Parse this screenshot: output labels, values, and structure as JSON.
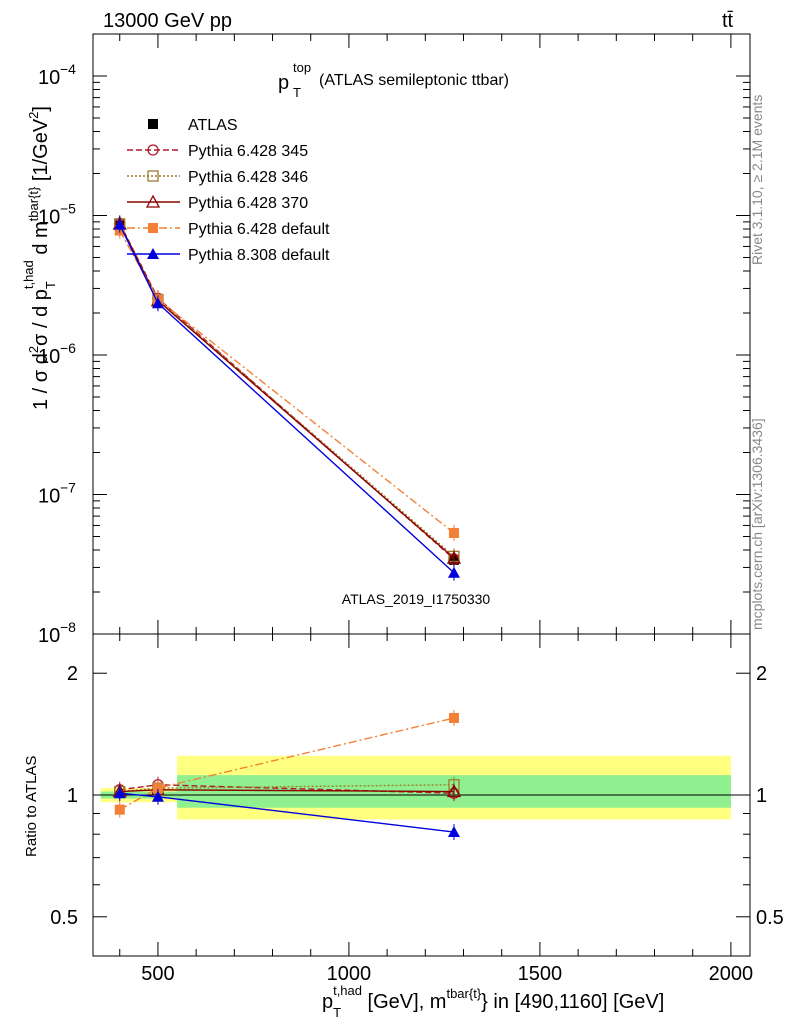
{
  "header": {
    "left": "13000 GeV pp",
    "right": "tt̄"
  },
  "side_labels": {
    "rivet": "Rivet 3.1.10, ≥ 2.1M events",
    "mcplots": "mcplots.cern.ch [arXiv:1306.3436]"
  },
  "chart_data": [
    {
      "type": "line",
      "panel": "main",
      "title": {
        "main": "p",
        "sup": "top",
        "sub": "T",
        "rest": " (ATLAS semileptonic ttbar)"
      },
      "ylabel": "1 / σ d²σ / d p_T^{t,had} d m^{tbar{t}} [1/GeV²]",
      "yscale": "log",
      "ylim": [
        1e-08,
        0.0002
      ],
      "xlim": [
        330,
        2050
      ],
      "analysis_id": "ATLAS_2019_I1750330",
      "yticks": [
        {
          "v": 1e-08,
          "label": "10",
          "exp": "−8"
        },
        {
          "v": 1e-07,
          "label": "10",
          "exp": "−7"
        },
        {
          "v": 1e-06,
          "label": "10",
          "exp": "−6"
        },
        {
          "v": 1e-05,
          "label": "10",
          "exp": "−5"
        },
        {
          "v": 0.0001,
          "label": "10",
          "exp": "−4"
        }
      ],
      "series": [
        {
          "name": "ATLAS",
          "color": "#000000",
          "marker": "square",
          "dash": "none",
          "x": [
            400,
            500,
            1275
          ],
          "y": [
            8.5e-06,
            2.4e-06,
            3.4e-08
          ]
        },
        {
          "name": "Pythia 6.428 345",
          "color": "#b2182b",
          "marker": "circle-open",
          "dash": "6,3",
          "x": [
            400,
            500,
            1275
          ],
          "y": [
            8.8e-06,
            2.55e-06,
            3.45e-08
          ]
        },
        {
          "name": "Pythia 6.428 346",
          "color": "#9a7d2a",
          "marker": "square-open",
          "dash": "2,2",
          "x": [
            400,
            500,
            1275
          ],
          "y": [
            8.7e-06,
            2.5e-06,
            3.6e-08
          ]
        },
        {
          "name": "Pythia 6.428 370",
          "color": "#8b0000",
          "marker": "triangle-open",
          "dash": "none",
          "x": [
            400,
            500,
            1275
          ],
          "y": [
            8.7e-06,
            2.45e-06,
            3.5e-08
          ]
        },
        {
          "name": "Pythia 6.428 default",
          "color": "#f47f36",
          "marker": "square",
          "dash": "8,3,2,3",
          "x": [
            400,
            500,
            1275
          ],
          "y": [
            7.8e-06,
            2.5e-06,
            5.3e-08
          ]
        },
        {
          "name": "Pythia 8.308 default",
          "color": "#0000dd",
          "marker": "triangle",
          "dash": "none",
          "x": [
            400,
            500,
            1275
          ],
          "y": [
            8.6e-06,
            2.35e-06,
            2.75e-08
          ]
        }
      ]
    },
    {
      "type": "line",
      "panel": "ratio",
      "ylabel": "Ratio to ATLAS",
      "yscale": "log",
      "ylim": [
        0.4,
        2.5
      ],
      "xlim": [
        330,
        2050
      ],
      "yticks": [
        {
          "v": 0.5,
          "label": "0.5"
        },
        {
          "v": 1,
          "label": "1"
        },
        {
          "v": 2,
          "label": "2"
        }
      ],
      "xticks": [
        {
          "v": 500,
          "label": "500"
        },
        {
          "v": 1000,
          "label": "1000"
        },
        {
          "v": 1500,
          "label": "1500"
        },
        {
          "v": 2000,
          "label": "2000"
        }
      ],
      "xlabel": "p_T^{t,had} [GeV], m^{tbar{t}} in [490,1160] [GeV]",
      "bands": [
        {
          "x": [
            350,
            550
          ],
          "y_lo": [
            0.96,
            0.98
          ],
          "y_hi": [
            1.04,
            1.02
          ],
          "kind": "uncertainty"
        },
        {
          "x": [
            550,
            2000
          ],
          "y_lo": [
            0.87,
            0.93
          ],
          "y_hi": [
            1.25,
            1.12
          ],
          "kind": "uncertainty"
        }
      ],
      "series": [
        {
          "name": "Pythia 6.428 345",
          "color": "#b2182b",
          "marker": "circle-open",
          "dash": "6,3",
          "x": [
            400,
            500,
            1275
          ],
          "y": [
            1.03,
            1.06,
            1.01
          ]
        },
        {
          "name": "Pythia 6.428 346",
          "color": "#9a7d2a",
          "marker": "square-open",
          "dash": "2,2",
          "x": [
            400,
            500,
            1275
          ],
          "y": [
            1.02,
            1.04,
            1.06
          ]
        },
        {
          "name": "Pythia 6.428 370",
          "color": "#8b0000",
          "marker": "triangle-open",
          "dash": "none",
          "x": [
            400,
            500,
            1275
          ],
          "y": [
            1.02,
            1.03,
            1.02
          ]
        },
        {
          "name": "Pythia 6.428 default",
          "color": "#f47f36",
          "marker": "square",
          "dash": "8,3,2,3",
          "x": [
            400,
            500,
            1275
          ],
          "y": [
            0.92,
            1.04,
            1.55
          ]
        },
        {
          "name": "Pythia 8.308 default",
          "color": "#0000dd",
          "marker": "triangle",
          "dash": "none",
          "x": [
            400,
            500,
            1275
          ],
          "y": [
            1.01,
            0.99,
            0.81
          ]
        }
      ]
    }
  ]
}
